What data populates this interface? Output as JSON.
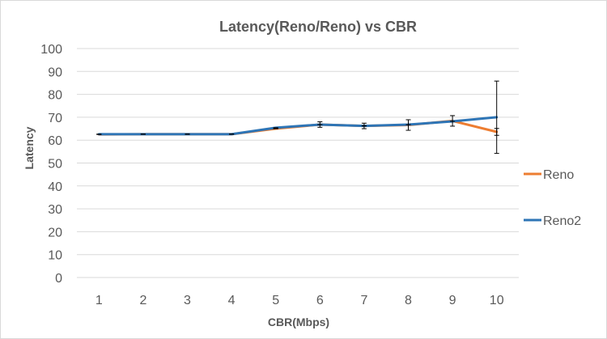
{
  "chart_data": {
    "type": "line",
    "title": "Latency(Reno/Reno) vs CBR",
    "xlabel": "CBR(Mbps)",
    "ylabel": "Latency",
    "categories": [
      "1",
      "2",
      "3",
      "4",
      "5",
      "6",
      "7",
      "8",
      "9",
      "10"
    ],
    "ylim": [
      0,
      100
    ],
    "yticks": [
      0,
      10,
      20,
      30,
      40,
      50,
      60,
      70,
      80,
      90,
      100
    ],
    "grid": true,
    "legend_position": "right",
    "series": [
      {
        "name": "Reno",
        "color": "#ED7D31",
        "values": [
          62.5,
          62.6,
          62.6,
          62.6,
          65.0,
          66.8,
          66.2,
          66.6,
          68.4,
          63.6
        ],
        "errors": [
          0,
          0,
          0,
          0,
          0,
          1.2,
          1.2,
          2.3,
          2.3,
          1.5
        ]
      },
      {
        "name": "Reno2",
        "color": "#2E75B6",
        "values": [
          62.6,
          62.6,
          62.6,
          62.6,
          65.4,
          66.8,
          66.2,
          66.8,
          68.2,
          70.0
        ],
        "errors": [
          0,
          0,
          0,
          0,
          0,
          0,
          0,
          0,
          0,
          15.8
        ]
      }
    ]
  }
}
